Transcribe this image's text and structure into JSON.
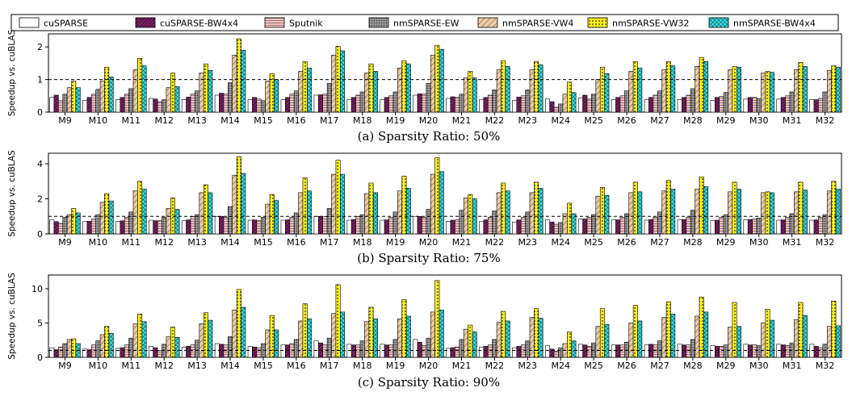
{
  "chart_data": [
    {
      "type": "bar",
      "title": "",
      "caption": "(a) Sparsity Ratio: 50%",
      "xlabel": "",
      "ylabel": "Speedup vs. cuBLAS",
      "ylim": [
        0,
        2.4
      ],
      "yticks": [
        0,
        1,
        2
      ],
      "reference_line": 1,
      "categories": [
        "M9",
        "M10",
        "M11",
        "M12",
        "M13",
        "M14",
        "M15",
        "M16",
        "M17",
        "M18",
        "M19",
        "M20",
        "M21",
        "M22",
        "M23",
        "M24",
        "M25",
        "M26",
        "M27",
        "M28",
        "M29",
        "M30",
        "M31",
        "M32"
      ],
      "series": [
        {
          "name": "cuSPARSE",
          "values": [
            0.45,
            0.36,
            0.38,
            0.42,
            0.39,
            0.52,
            0.38,
            0.38,
            0.52,
            0.39,
            0.38,
            0.52,
            0.42,
            0.38,
            0.36,
            0.4,
            0.44,
            0.38,
            0.39,
            0.38,
            0.36,
            0.4,
            0.4,
            0.39
          ]
        },
        {
          "name": "cuSPARSE-BW4x4",
          "values": [
            0.52,
            0.45,
            0.45,
            0.4,
            0.46,
            0.58,
            0.45,
            0.45,
            0.53,
            0.45,
            0.45,
            0.56,
            0.47,
            0.45,
            0.46,
            0.32,
            0.52,
            0.45,
            0.45,
            0.45,
            0.45,
            0.45,
            0.45,
            0.38
          ]
        },
        {
          "name": "Sputnik",
          "values": [
            0.35,
            0.55,
            0.55,
            0.32,
            0.55,
            0.55,
            0.4,
            0.55,
            0.55,
            0.52,
            0.5,
            0.55,
            0.45,
            0.52,
            0.5,
            0.15,
            0.4,
            0.5,
            0.52,
            0.52,
            0.48,
            0.45,
            0.5,
            0.42
          ]
        },
        {
          "name": "nmSPARSE-EW",
          "values": [
            0.55,
            0.7,
            0.72,
            0.38,
            0.65,
            0.9,
            0.35,
            0.65,
            0.88,
            0.62,
            0.62,
            0.88,
            0.55,
            0.68,
            0.68,
            0.25,
            0.55,
            0.65,
            0.65,
            0.72,
            0.6,
            0.42,
            0.62,
            0.62
          ]
        },
        {
          "name": "nmSPARSE-VW4",
          "values": [
            0.75,
            0.95,
            1.3,
            0.75,
            1.2,
            1.75,
            0.95,
            1.25,
            1.75,
            1.2,
            1.35,
            1.75,
            1.05,
            1.3,
            1.3,
            0.55,
            1.0,
            1.25,
            1.3,
            1.4,
            1.3,
            1.2,
            1.3,
            1.28
          ]
        },
        {
          "name": "nmSPARSE-VW32",
          "values": [
            0.95,
            1.38,
            1.65,
            1.2,
            1.48,
            2.25,
            1.18,
            1.55,
            2.02,
            1.48,
            1.58,
            2.05,
            1.25,
            1.58,
            1.55,
            0.92,
            1.38,
            1.55,
            1.55,
            1.68,
            1.4,
            1.25,
            1.52,
            1.42
          ]
        },
        {
          "name": "nmSPARSE-BW4x4",
          "values": [
            0.75,
            1.08,
            1.42,
            0.78,
            1.28,
            1.9,
            1.0,
            1.35,
            1.88,
            1.25,
            1.48,
            1.92,
            1.05,
            1.4,
            1.45,
            0.6,
            1.18,
            1.35,
            1.42,
            1.55,
            1.38,
            1.22,
            1.4,
            1.38
          ]
        }
      ]
    },
    {
      "type": "bar",
      "title": "",
      "caption": "(b) Sparsity Ratio: 75%",
      "xlabel": "",
      "ylabel": "Speedup vs. cuBLAS",
      "ylim": [
        0,
        4.6
      ],
      "yticks": [
        0,
        2,
        4
      ],
      "reference_line": 1,
      "categories": [
        "M9",
        "M10",
        "M11",
        "M12",
        "M13",
        "M14",
        "M15",
        "M16",
        "M17",
        "M18",
        "M19",
        "M20",
        "M21",
        "M22",
        "M23",
        "M24",
        "M25",
        "M26",
        "M27",
        "M28",
        "M29",
        "M30",
        "M31",
        "M32"
      ],
      "series": [
        {
          "name": "cuSPARSE",
          "values": [
            0.8,
            0.7,
            0.7,
            0.78,
            0.75,
            0.98,
            0.78,
            0.78,
            1.0,
            0.78,
            0.78,
            1.0,
            0.72,
            0.7,
            0.68,
            0.8,
            0.85,
            0.8,
            0.78,
            0.8,
            0.75,
            0.8,
            0.78,
            0.78
          ]
        },
        {
          "name": "cuSPARSE-BW4x4",
          "values": [
            0.7,
            0.72,
            0.75,
            0.75,
            0.8,
            1.0,
            0.8,
            0.8,
            1.0,
            0.82,
            0.8,
            1.0,
            0.78,
            0.8,
            0.8,
            0.68,
            0.85,
            0.8,
            0.82,
            0.82,
            0.78,
            0.82,
            0.8,
            0.8
          ]
        },
        {
          "name": "Sputnik",
          "values": [
            0.6,
            0.85,
            0.95,
            0.75,
            1.0,
            0.95,
            0.75,
            0.95,
            0.98,
            1.0,
            0.95,
            0.95,
            0.8,
            0.95,
            0.95,
            0.55,
            0.95,
            0.95,
            0.95,
            0.95,
            0.95,
            0.85,
            0.95,
            0.95
          ]
        },
        {
          "name": "nmSPARSE-EW",
          "values": [
            0.95,
            1.1,
            1.25,
            0.95,
            1.1,
            1.55,
            0.95,
            1.2,
            1.45,
            1.1,
            1.25,
            1.4,
            1.35,
            1.3,
            1.25,
            0.65,
            1.1,
            1.15,
            1.25,
            1.35,
            1.1,
            0.9,
            1.15,
            1.1
          ]
        },
        {
          "name": "nmSPARSE-VW4",
          "values": [
            1.1,
            1.8,
            2.45,
            1.45,
            2.35,
            3.35,
            1.7,
            2.35,
            3.4,
            2.3,
            2.45,
            3.4,
            2.05,
            2.35,
            2.35,
            1.15,
            2.15,
            2.35,
            2.45,
            2.55,
            2.4,
            2.35,
            2.4,
            2.45
          ]
        },
        {
          "name": "nmSPARSE-VW32",
          "values": [
            1.45,
            2.3,
            3.0,
            2.05,
            2.8,
            4.4,
            2.25,
            3.2,
            4.2,
            2.9,
            3.3,
            4.35,
            2.25,
            2.9,
            2.95,
            1.75,
            2.65,
            2.95,
            3.05,
            3.25,
            2.95,
            2.4,
            2.95,
            3.0
          ]
        },
        {
          "name": "nmSPARSE-BW4x4",
          "values": [
            1.2,
            1.88,
            2.55,
            1.4,
            2.35,
            3.45,
            1.9,
            2.45,
            3.4,
            2.35,
            2.6,
            3.55,
            2.0,
            2.45,
            2.6,
            1.15,
            2.2,
            2.4,
            2.55,
            2.7,
            2.55,
            2.35,
            2.5,
            2.55
          ]
        }
      ]
    },
    {
      "type": "bar",
      "title": "",
      "caption": "(c) Sparsity Ratio: 90%",
      "xlabel": "",
      "ylabel": "Speedup vs. cuBLAS",
      "ylim": [
        0,
        12
      ],
      "yticks": [
        0,
        5,
        10
      ],
      "reference_line": 1,
      "categories": [
        "M9",
        "M10",
        "M11",
        "M12",
        "M13",
        "M14",
        "M15",
        "M16",
        "M17",
        "M18",
        "M19",
        "M20",
        "M21",
        "M22",
        "M23",
        "M24",
        "M25",
        "M26",
        "M27",
        "M28",
        "M29",
        "M30",
        "M31",
        "M32"
      ],
      "series": [
        {
          "name": "cuSPARSE",
          "values": [
            1.4,
            1.2,
            1.3,
            1.6,
            1.5,
            2.0,
            1.6,
            1.8,
            2.4,
            1.9,
            1.9,
            2.6,
            1.3,
            1.5,
            1.4,
            1.7,
            1.9,
            1.8,
            1.8,
            1.9,
            1.7,
            1.9,
            1.9,
            1.9
          ]
        },
        {
          "name": "cuSPARSE-BW4x4",
          "values": [
            1.1,
            1.1,
            1.4,
            1.4,
            1.6,
            1.9,
            1.5,
            1.8,
            2.1,
            1.8,
            1.8,
            2.2,
            1.4,
            1.6,
            1.6,
            1.2,
            1.8,
            1.8,
            1.9,
            1.8,
            1.6,
            1.8,
            1.8,
            1.6
          ]
        },
        {
          "name": "Sputnik",
          "values": [
            1.5,
            1.8,
            1.8,
            1.0,
            1.8,
            1.8,
            1.4,
            2.0,
            1.8,
            1.8,
            1.8,
            1.7,
            1.5,
            1.8,
            1.8,
            0.9,
            1.6,
            1.8,
            1.8,
            1.8,
            1.6,
            1.8,
            1.7,
            1.4
          ]
        },
        {
          "name": "nmSPARSE-EW",
          "values": [
            2.0,
            2.4,
            2.8,
            1.9,
            2.5,
            3.0,
            2.0,
            2.6,
            2.8,
            2.4,
            2.6,
            2.8,
            2.6,
            2.6,
            2.4,
            1.4,
            2.1,
            2.2,
            2.4,
            2.6,
            1.8,
            1.7,
            2.1,
            1.9
          ]
        },
        {
          "name": "nmSPARSE-VW4",
          "values": [
            2.6,
            3.3,
            4.9,
            3.0,
            4.9,
            6.9,
            4.0,
            5.3,
            6.4,
            5.2,
            5.6,
            6.6,
            4.1,
            5.1,
            5.8,
            2.0,
            4.5,
            5.0,
            5.8,
            6.0,
            4.4,
            5.0,
            5.5,
            4.5
          ]
        },
        {
          "name": "nmSPARSE-VW32",
          "values": [
            2.7,
            4.5,
            6.3,
            4.4,
            6.5,
            9.9,
            6.1,
            7.8,
            10.6,
            7.3,
            8.4,
            11.2,
            4.7,
            6.7,
            7.1,
            3.7,
            7.1,
            7.6,
            8.1,
            8.8,
            8.0,
            7.0,
            8.0,
            8.2
          ]
        },
        {
          "name": "nmSPARSE-BW4x4",
          "values": [
            2.0,
            3.5,
            5.2,
            2.9,
            5.4,
            7.3,
            4.0,
            5.6,
            6.6,
            5.6,
            6.0,
            6.9,
            3.7,
            5.3,
            5.7,
            2.4,
            4.8,
            5.3,
            6.3,
            6.6,
            4.5,
            5.4,
            6.1,
            4.6
          ]
        }
      ]
    }
  ],
  "legend": [
    {
      "name": "cuSPARSE",
      "pattern": "plain",
      "color": "#ffffff"
    },
    {
      "name": "cuSPARSE-BW4x4",
      "pattern": "diag-dense",
      "color": "#5c0f4a"
    },
    {
      "name": "Sputnik",
      "pattern": "hlines",
      "color": "#e8b8b8"
    },
    {
      "name": "nmSPARSE-EW",
      "pattern": "dots-dark",
      "color": "#8a8a8a"
    },
    {
      "name": "nmSPARSE-VW4",
      "pattern": "diag",
      "color": "#e5c6a4"
    },
    {
      "name": "nmSPARSE-VW32",
      "pattern": "dots",
      "color": "#fff21c"
    },
    {
      "name": "nmSPARSE-BW4x4",
      "pattern": "cross",
      "color": "#35e3e3"
    }
  ]
}
